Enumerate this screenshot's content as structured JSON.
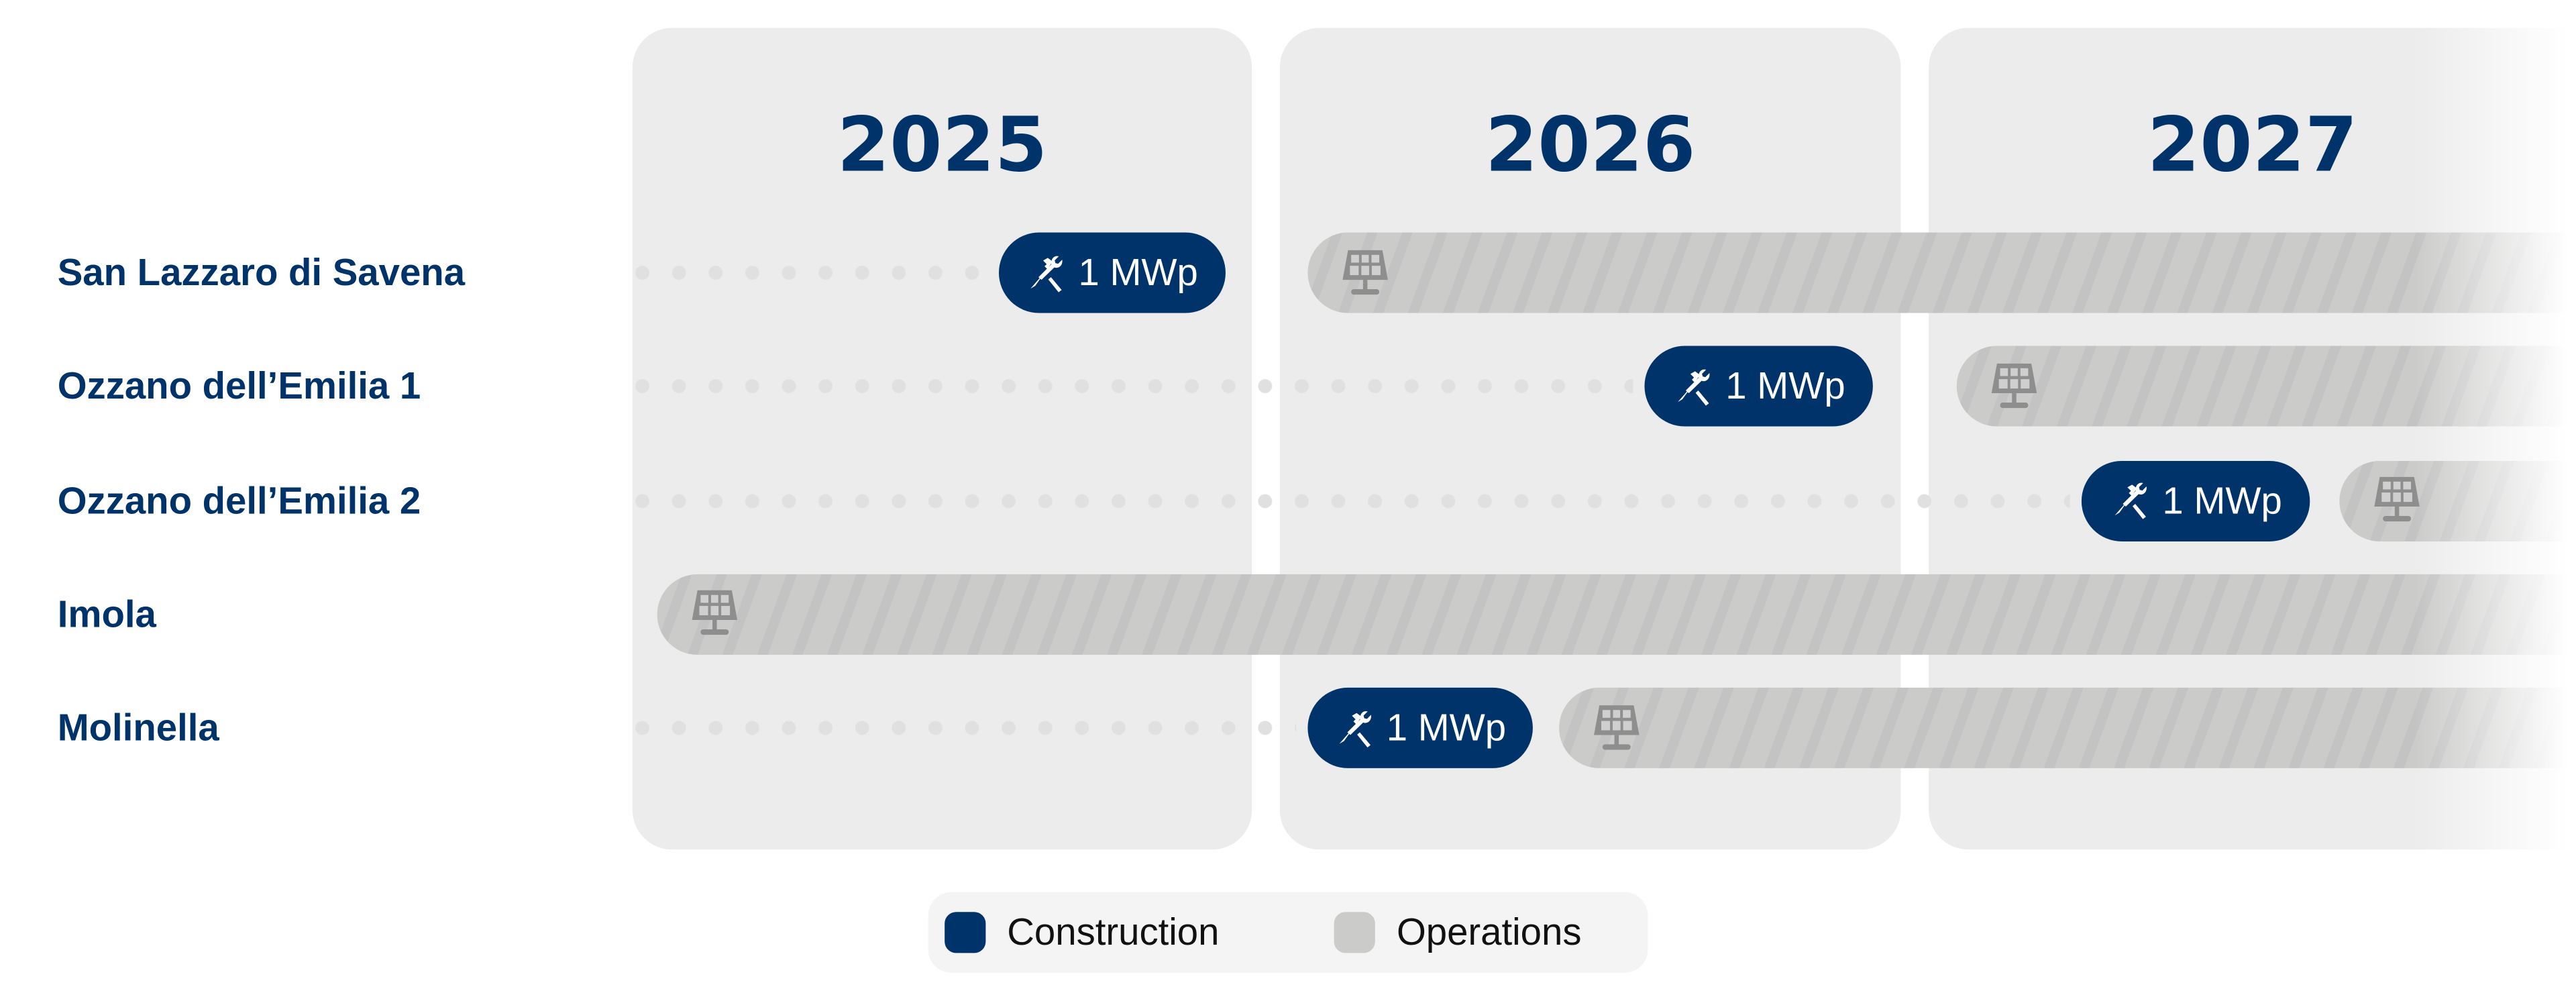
{
  "chart_data": {
    "type": "gantt",
    "years": [
      "2025",
      "2026",
      "2027"
    ],
    "legend": {
      "construction": "Construction",
      "operations": "Operations"
    },
    "colors": {
      "construction": "#00336a",
      "operations": "#cbcbca",
      "column": "#ececec",
      "text": "#00336a"
    },
    "rows": [
      {
        "label": "San Lazzaro di Savena",
        "construction": {
          "start": "2025-07-26",
          "end": "2025-12-01",
          "label": "1 MWp"
        },
        "operations": {
          "start": "2026-01-16",
          "end": null
        }
      },
      {
        "label": "Ozzano dell’Emilia 1",
        "construction": {
          "start": "2026-07-25",
          "end": "2026-12-01",
          "label": "1 MWp"
        },
        "operations": {
          "start": "2027-01-17",
          "end": null
        }
      },
      {
        "label": "Ozzano dell’Emilia 2",
        "construction": {
          "start": "2027-03-28",
          "end": "2027-08-04",
          "label": "1 MWp"
        },
        "operations": {
          "start": "2027-08-20",
          "end": null
        }
      },
      {
        "label": "Imola",
        "construction": null,
        "operations": {
          "start": "2025-01-15",
          "end": null
        }
      },
      {
        "label": "Molinella",
        "construction": {
          "start": "2026-01-16",
          "end": "2026-05-23",
          "label": "1 MWp"
        },
        "operations": {
          "start": "2026-06-07",
          "end": null
        }
      }
    ],
    "icons": {
      "construction": "tools-icon",
      "operations": "solar-panel-icon"
    }
  }
}
